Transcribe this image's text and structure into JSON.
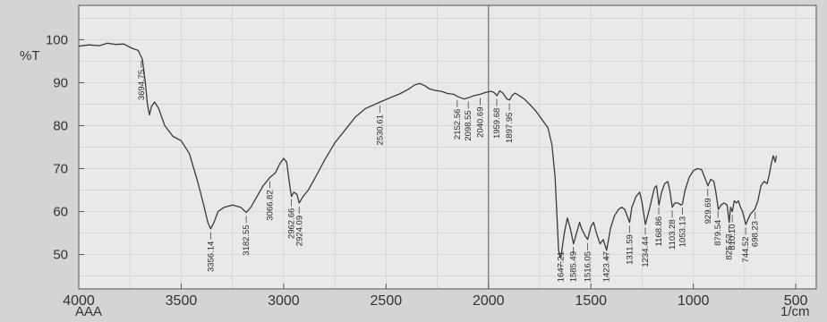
{
  "chart_data": {
    "type": "line",
    "title": "",
    "xlabel_left": "AAA",
    "xlabel_right": "1/cm",
    "ylabel": "%T",
    "xlim": [
      4000,
      400
    ],
    "ylim": [
      42,
      108
    ],
    "x_ticks": [
      4000,
      3500,
      3000,
      2500,
      2000,
      1500,
      1000,
      500
    ],
    "y_ticks": [
      100,
      90,
      80,
      70,
      60,
      50
    ],
    "grid": true,
    "series": [
      {
        "points": [
          [
            4000,
            98.5
          ],
          [
            3950,
            98.8
          ],
          [
            3900,
            98.6
          ],
          [
            3860,
            99.2
          ],
          [
            3820,
            98.9
          ],
          [
            3780,
            99.0
          ],
          [
            3740,
            98.0
          ],
          [
            3710,
            97.5
          ],
          [
            3690,
            95.5
          ],
          [
            3675,
            90
          ],
          [
            3665,
            85
          ],
          [
            3655,
            82.5
          ],
          [
            3645,
            84.5
          ],
          [
            3630,
            85.5
          ],
          [
            3610,
            84.0
          ],
          [
            3580,
            80.0
          ],
          [
            3540,
            77.5
          ],
          [
            3500,
            76.5
          ],
          [
            3460,
            73.5
          ],
          [
            3420,
            67.0
          ],
          [
            3390,
            61.5
          ],
          [
            3370,
            57.5
          ],
          [
            3356,
            56.0
          ],
          [
            3340,
            57.5
          ],
          [
            3320,
            60.0
          ],
          [
            3290,
            61.0
          ],
          [
            3250,
            61.5
          ],
          [
            3210,
            61.0
          ],
          [
            3182,
            59.8
          ],
          [
            3160,
            61.0
          ],
          [
            3130,
            63.5
          ],
          [
            3100,
            66.0
          ],
          [
            3066,
            68.0
          ],
          [
            3040,
            69.0
          ],
          [
            3020,
            71.0
          ],
          [
            3000,
            72.4
          ],
          [
            2985,
            71.5
          ],
          [
            2970,
            66.0
          ],
          [
            2962,
            63.5
          ],
          [
            2950,
            64.5
          ],
          [
            2935,
            64.0
          ],
          [
            2924,
            62.0
          ],
          [
            2905,
            63.5
          ],
          [
            2880,
            65.0
          ],
          [
            2850,
            67.5
          ],
          [
            2800,
            72.0
          ],
          [
            2750,
            76.0
          ],
          [
            2700,
            79.0
          ],
          [
            2650,
            82.0
          ],
          [
            2600,
            84.0
          ],
          [
            2530,
            85.5
          ],
          [
            2480,
            86.5
          ],
          [
            2430,
            87.5
          ],
          [
            2390,
            88.5
          ],
          [
            2360,
            89.5
          ],
          [
            2335,
            89.8
          ],
          [
            2310,
            89.3
          ],
          [
            2290,
            88.6
          ],
          [
            2260,
            88.2
          ],
          [
            2230,
            88.0
          ],
          [
            2200,
            87.5
          ],
          [
            2170,
            87.3
          ],
          [
            2152,
            86.8
          ],
          [
            2120,
            86.2
          ],
          [
            2098,
            86.5
          ],
          [
            2070,
            87.0
          ],
          [
            2040,
            87.3
          ],
          [
            2010,
            87.8
          ],
          [
            1985,
            88.0
          ],
          [
            1970,
            87.6
          ],
          [
            1959,
            87.0
          ],
          [
            1945,
            88.1
          ],
          [
            1930,
            87.6
          ],
          [
            1910,
            86.2
          ],
          [
            1897,
            86.0
          ],
          [
            1885,
            87.0
          ],
          [
            1870,
            87.6
          ],
          [
            1850,
            87.0
          ],
          [
            1825,
            86.2
          ],
          [
            1800,
            85.0
          ],
          [
            1770,
            83.5
          ],
          [
            1740,
            81.5
          ],
          [
            1710,
            79.5
          ],
          [
            1690,
            75.5
          ],
          [
            1675,
            68.0
          ],
          [
            1665,
            58.0
          ],
          [
            1658,
            51.0
          ],
          [
            1650,
            49.5
          ],
          [
            1647,
            49.2
          ],
          [
            1630,
            55.0
          ],
          [
            1615,
            58.5
          ],
          [
            1600,
            56.0
          ],
          [
            1585,
            52.5
          ],
          [
            1570,
            55.0
          ],
          [
            1555,
            57.5
          ],
          [
            1545,
            56.0
          ],
          [
            1530,
            54.5
          ],
          [
            1516,
            53.5
          ],
          [
            1500,
            56.5
          ],
          [
            1487,
            57.5
          ],
          [
            1470,
            54.5
          ],
          [
            1455,
            52.5
          ],
          [
            1440,
            53.5
          ],
          [
            1423,
            51.0
          ],
          [
            1405,
            56.0
          ],
          [
            1385,
            59.0
          ],
          [
            1365,
            60.5
          ],
          [
            1350,
            61.0
          ],
          [
            1335,
            60.5
          ],
          [
            1311,
            57.5
          ],
          [
            1300,
            61.0
          ],
          [
            1280,
            63.5
          ],
          [
            1262,
            64.5
          ],
          [
            1250,
            62.0
          ],
          [
            1234,
            57.0
          ],
          [
            1215,
            60.5
          ],
          [
            1200,
            63.5
          ],
          [
            1190,
            65.5
          ],
          [
            1180,
            66.0
          ],
          [
            1168,
            61.5
          ],
          [
            1155,
            64.5
          ],
          [
            1140,
            66.5
          ],
          [
            1125,
            67.0
          ],
          [
            1115,
            65.0
          ],
          [
            1103,
            61.0
          ],
          [
            1090,
            62.0
          ],
          [
            1075,
            62.0
          ],
          [
            1060,
            61.5
          ],
          [
            1053,
            61.8
          ],
          [
            1040,
            65.0
          ],
          [
            1020,
            68.0
          ],
          [
            1000,
            69.5
          ],
          [
            980,
            70.0
          ],
          [
            960,
            69.8
          ],
          [
            945,
            68.0
          ],
          [
            929,
            66.0
          ],
          [
            915,
            67.5
          ],
          [
            900,
            67.0
          ],
          [
            890,
            64.5
          ],
          [
            878,
            60.5
          ],
          [
            865,
            61.5
          ],
          [
            850,
            62.0
          ],
          [
            835,
            61.5
          ],
          [
            825,
            57.5
          ],
          [
            818,
            61.0
          ],
          [
            810,
            60.0
          ],
          [
            800,
            62.5
          ],
          [
            790,
            62.0
          ],
          [
            780,
            62.5
          ],
          [
            770,
            61.0
          ],
          [
            760,
            60.0
          ],
          [
            744,
            57.0
          ],
          [
            735,
            58.0
          ],
          [
            720,
            59.5
          ],
          [
            700,
            60.5
          ],
          [
            685,
            62.5
          ],
          [
            670,
            66.0
          ],
          [
            655,
            67.0
          ],
          [
            640,
            66.5
          ],
          [
            630,
            68.5
          ],
          [
            620,
            71.0
          ],
          [
            610,
            73.0
          ],
          [
            600,
            71.5
          ],
          [
            595,
            73.0
          ]
        ]
      }
    ],
    "peak_labels": [
      {
        "x": 3694.75,
        "label": "3694.75"
      },
      {
        "x": 3356.14,
        "label": "3356.14"
      },
      {
        "x": 3182.55,
        "label": "3182.55"
      },
      {
        "x": 3066.82,
        "label": "3066.82"
      },
      {
        "x": 2962.66,
        "label": "2962.66"
      },
      {
        "x": 2924.09,
        "label": "2924.09"
      },
      {
        "x": 2530.61,
        "label": "2530.61"
      },
      {
        "x": 2152.56,
        "label": "2152.56"
      },
      {
        "x": 2098.55,
        "label": "2098.55"
      },
      {
        "x": 2040.69,
        "label": "2040.69"
      },
      {
        "x": 1959.68,
        "label": "1959.68"
      },
      {
        "x": 1897.95,
        "label": "1897.95"
      },
      {
        "x": 1647.21,
        "label": "1647.21"
      },
      {
        "x": 1585.49,
        "label": "1585.49"
      },
      {
        "x": 1516.05,
        "label": "1516.05"
      },
      {
        "x": 1423.47,
        "label": "1423.47"
      },
      {
        "x": 1311.59,
        "label": "1311.59"
      },
      {
        "x": 1234.44,
        "label": "1234.44"
      },
      {
        "x": 1168.86,
        "label": "1168.86"
      },
      {
        "x": 1103.28,
        "label": "1103.28"
      },
      {
        "x": 1053.13,
        "label": "1053.13"
      },
      {
        "x": 929.69,
        "label": "929.69"
      },
      {
        "x": 879.54,
        "label": "879.54"
      },
      {
        "x": 825.53,
        "label": "825.53"
      },
      {
        "x": 810.1,
        "label": "810.10"
      },
      {
        "x": 744.52,
        "label": "744.52"
      },
      {
        "x": 698.23,
        "label": "698.23"
      }
    ],
    "colors": {
      "background": "#d4d4d2",
      "plot_background": "#e9e9e7",
      "grid": "#c8c8c6",
      "line": "#3a3a3a",
      "text": "#333333"
    }
  }
}
